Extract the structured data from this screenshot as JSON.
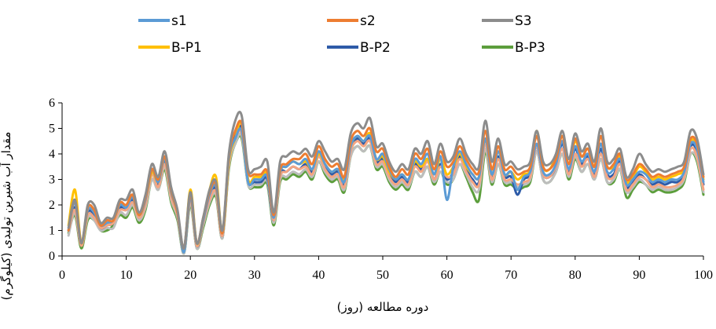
{
  "chart_data": {
    "type": "line",
    "xlabel": "دوره مطالعه (روز)",
    "ylabel": "مقدار آب شیرین تولیدی (کیلوگرم)",
    "xlim": [
      0,
      100
    ],
    "ylim": [
      0,
      6
    ],
    "xticks": [
      0,
      10,
      20,
      30,
      40,
      50,
      60,
      70,
      80,
      90,
      100
    ],
    "yticks": [
      0,
      1,
      2,
      3,
      4,
      5,
      6
    ],
    "grid": false,
    "legend_position": "top",
    "x": [
      1,
      2,
      3,
      4,
      5,
      6,
      7,
      8,
      9,
      10,
      11,
      12,
      13,
      14,
      15,
      16,
      17,
      18,
      19,
      20,
      21,
      22,
      23,
      24,
      25,
      26,
      27,
      28,
      29,
      30,
      31,
      32,
      33,
      34,
      35,
      36,
      37,
      38,
      39,
      40,
      41,
      42,
      43,
      44,
      45,
      46,
      47,
      48,
      49,
      50,
      51,
      52,
      53,
      54,
      55,
      56,
      57,
      58,
      59,
      60,
      61,
      62,
      63,
      64,
      65,
      66,
      67,
      68,
      69,
      70,
      71,
      72,
      73,
      74,
      75,
      76,
      77,
      78,
      79,
      80,
      81,
      82,
      83,
      84,
      85,
      86,
      87,
      88,
      89,
      90,
      91,
      92,
      93,
      94,
      95,
      96,
      97,
      98,
      99,
      100
    ],
    "series": [
      {
        "name": "s1",
        "color": "#5b9bd5",
        "values": [
          1.0,
          2.1,
          0.5,
          1.8,
          1.7,
          1.2,
          1.3,
          1.4,
          2.0,
          1.9,
          2.3,
          1.6,
          2.2,
          3.4,
          2.9,
          3.8,
          2.5,
          1.7,
          0.15,
          2.3,
          0.5,
          1.4,
          2.4,
          2.7,
          0.9,
          3.8,
          4.6,
          4.9,
          2.9,
          3.0,
          3.0,
          3.1,
          1.5,
          3.3,
          3.5,
          3.7,
          3.6,
          3.8,
          3.4,
          4.1,
          3.6,
          3.3,
          3.4,
          2.9,
          4.3,
          4.7,
          4.5,
          4.7,
          3.8,
          4.0,
          3.4,
          3.0,
          3.2,
          3.0,
          3.8,
          3.6,
          4.0,
          3.2,
          3.9,
          2.2,
          3.5,
          4.1,
          3.6,
          3.2,
          3.1,
          4.6,
          3.2,
          4.1,
          3.2,
          3.3,
          2.6,
          3.1,
          3.3,
          4.4,
          3.3,
          3.2,
          3.6,
          4.5,
          3.4,
          4.3,
          3.7,
          4.0,
          3.3,
          4.4,
          3.3,
          3.4,
          3.8,
          2.8,
          3.0,
          3.3,
          3.2,
          2.9,
          3.0,
          2.9,
          3.0,
          3.0,
          3.3,
          4.4,
          4.2,
          2.9
        ]
      },
      {
        "name": "s2",
        "color": "#ed7d31",
        "values": [
          1.0,
          2.2,
          0.5,
          1.9,
          1.8,
          1.2,
          1.4,
          1.4,
          2.1,
          2.0,
          2.4,
          1.6,
          2.3,
          3.4,
          3.0,
          3.9,
          2.6,
          1.7,
          0.3,
          2.4,
          0.5,
          1.5,
          2.5,
          2.8,
          0.9,
          3.9,
          4.9,
          5.2,
          3.3,
          3.2,
          3.2,
          3.3,
          1.6,
          3.4,
          3.6,
          3.8,
          3.8,
          4.0,
          3.6,
          4.3,
          3.8,
          3.5,
          3.6,
          3.1,
          4.5,
          4.9,
          4.7,
          5.0,
          4.1,
          4.2,
          3.5,
          3.1,
          3.4,
          3.2,
          4.0,
          3.8,
          4.2,
          3.4,
          4.1,
          3.5,
          3.7,
          4.3,
          3.8,
          3.4,
          3.3,
          4.9,
          3.4,
          4.3,
          3.4,
          3.5,
          3.2,
          3.3,
          3.5,
          4.7,
          3.5,
          3.4,
          3.8,
          4.7,
          3.6,
          4.6,
          3.9,
          4.2,
          3.5,
          4.7,
          3.5,
          3.6,
          4.0,
          3.0,
          3.2,
          3.6,
          3.4,
          3.1,
          3.2,
          3.1,
          3.2,
          3.3,
          3.5,
          4.6,
          4.4,
          3.1
        ]
      },
      {
        "name": "S3",
        "color": "#8c8c8c",
        "values": [
          1.1,
          2.2,
          0.5,
          2.0,
          2.0,
          1.3,
          1.5,
          1.5,
          2.2,
          2.2,
          2.6,
          1.7,
          2.4,
          3.6,
          3.1,
          4.1,
          2.7,
          1.8,
          0.3,
          2.5,
          0.5,
          1.5,
          2.6,
          2.9,
          1.0,
          4.0,
          5.3,
          5.5,
          3.4,
          3.4,
          3.5,
          3.7,
          1.7,
          3.7,
          3.9,
          4.1,
          4.0,
          4.2,
          3.9,
          4.5,
          4.1,
          3.7,
          3.8,
          3.4,
          4.8,
          5.2,
          5.0,
          5.4,
          4.3,
          4.4,
          3.7,
          3.3,
          3.6,
          3.4,
          4.2,
          4.0,
          4.5,
          3.6,
          4.4,
          3.7,
          3.9,
          4.6,
          4.0,
          3.6,
          3.5,
          5.3,
          3.7,
          4.6,
          3.6,
          3.7,
          3.4,
          3.5,
          3.7,
          4.9,
          3.7,
          3.6,
          4.0,
          4.9,
          3.8,
          4.8,
          4.1,
          4.4,
          3.7,
          5.0,
          3.7,
          3.8,
          4.2,
          3.1,
          3.4,
          4.0,
          3.6,
          3.3,
          3.4,
          3.3,
          3.4,
          3.5,
          3.7,
          4.9,
          4.6,
          3.2
        ]
      },
      {
        "name": "B-P1",
        "color": "#ffc000",
        "values": [
          1.2,
          2.6,
          0.5,
          1.8,
          1.7,
          1.2,
          1.3,
          1.4,
          2.0,
          2.0,
          2.3,
          1.6,
          2.2,
          3.3,
          2.9,
          3.8,
          2.5,
          1.7,
          0.2,
          2.6,
          0.5,
          1.4,
          2.6,
          3.1,
          0.9,
          3.7,
          4.6,
          5.2,
          3.0,
          3.1,
          3.1,
          3.2,
          1.6,
          3.3,
          3.5,
          3.7,
          3.6,
          3.7,
          3.4,
          4.0,
          3.6,
          3.3,
          3.4,
          3.0,
          4.3,
          4.7,
          4.5,
          4.8,
          3.8,
          3.9,
          3.3,
          3.0,
          3.2,
          3.0,
          3.7,
          3.5,
          3.8,
          3.2,
          3.8,
          3.2,
          3.5,
          4.0,
          3.5,
          3.2,
          3.1,
          4.6,
          3.2,
          4.1,
          3.2,
          3.3,
          3.0,
          3.2,
          3.4,
          4.9,
          3.5,
          3.4,
          3.9,
          4.7,
          3.6,
          4.5,
          3.9,
          4.2,
          3.5,
          4.4,
          3.5,
          3.5,
          3.9,
          2.9,
          3.1,
          3.5,
          3.3,
          3.0,
          3.1,
          3.0,
          3.1,
          3.2,
          3.4,
          4.5,
          4.3,
          3.0
        ]
      },
      {
        "name": "B-P2",
        "color": "#2e5ba8",
        "values": [
          1.0,
          1.9,
          0.4,
          1.7,
          1.6,
          1.1,
          1.2,
          1.3,
          1.9,
          1.8,
          2.2,
          1.5,
          2.1,
          3.2,
          2.8,
          3.7,
          2.4,
          1.6,
          0.2,
          2.3,
          0.4,
          1.3,
          2.3,
          2.6,
          0.8,
          3.7,
          4.7,
          5.0,
          3.0,
          2.9,
          2.9,
          3.0,
          1.4,
          3.2,
          3.3,
          3.5,
          3.4,
          3.6,
          3.3,
          3.9,
          3.5,
          3.2,
          3.3,
          2.8,
          4.2,
          4.6,
          4.4,
          4.6,
          3.7,
          3.8,
          3.2,
          2.9,
          3.1,
          2.9,
          3.6,
          3.4,
          3.8,
          3.0,
          3.6,
          3.0,
          3.3,
          3.9,
          3.4,
          3.0,
          2.9,
          4.5,
          3.1,
          3.9,
          3.1,
          3.1,
          2.4,
          3.0,
          3.2,
          4.3,
          3.2,
          3.1,
          3.5,
          4.4,
          3.3,
          4.2,
          3.6,
          3.9,
          3.2,
          4.2,
          3.2,
          3.2,
          3.7,
          2.7,
          2.9,
          3.2,
          3.0,
          2.8,
          2.9,
          2.8,
          2.9,
          2.9,
          3.2,
          4.3,
          4.1,
          2.8
        ]
      },
      {
        "name": "B-P3",
        "color": "#5c9e3c",
        "values": [
          0.9,
          1.6,
          0.3,
          1.4,
          1.4,
          1.0,
          1.0,
          1.2,
          1.6,
          1.5,
          1.9,
          1.3,
          1.8,
          3.0,
          2.6,
          3.4,
          2.1,
          1.4,
          0.1,
          2.0,
          0.3,
          1.1,
          2.0,
          2.3,
          0.7,
          3.4,
          4.4,
          4.6,
          2.8,
          2.7,
          2.7,
          2.8,
          1.2,
          2.9,
          3.0,
          3.2,
          3.1,
          3.3,
          3.0,
          3.7,
          3.2,
          2.9,
          3.0,
          2.5,
          3.9,
          4.3,
          4.1,
          4.3,
          3.4,
          3.5,
          2.9,
          2.6,
          2.8,
          2.6,
          3.3,
          3.1,
          3.5,
          2.8,
          3.3,
          2.8,
          3.0,
          3.6,
          3.1,
          2.5,
          2.2,
          4.1,
          2.8,
          3.6,
          2.8,
          2.8,
          2.6,
          2.7,
          2.9,
          4.1,
          3.0,
          2.9,
          3.3,
          4.0,
          3.0,
          3.8,
          3.3,
          3.6,
          3.0,
          3.8,
          2.9,
          2.9,
          3.4,
          2.3,
          2.6,
          2.9,
          2.8,
          2.5,
          2.6,
          2.5,
          2.5,
          2.6,
          2.9,
          4.0,
          3.7,
          2.4
        ]
      },
      {
        "color": "#f4a582",
        "values": [
          1.0,
          1.8,
          0.4,
          1.6,
          1.5,
          1.1,
          1.2,
          1.3,
          1.8,
          1.8,
          2.1,
          1.5,
          2.0,
          3.2,
          2.7,
          3.6,
          2.3,
          1.6,
          0.2,
          2.2,
          0.4,
          1.3,
          2.2,
          2.5,
          0.8,
          3.6,
          4.6,
          4.8,
          3.0,
          3.0,
          3.0,
          3.1,
          1.4,
          3.1,
          3.3,
          3.5,
          3.4,
          3.5,
          3.2,
          3.9,
          3.4,
          3.1,
          3.2,
          2.7,
          4.1,
          4.5,
          4.3,
          4.5,
          3.6,
          3.7,
          3.1,
          2.8,
          3.0,
          2.8,
          3.5,
          3.3,
          3.7,
          3.0,
          3.5,
          3.1,
          3.2,
          3.8,
          3.3,
          2.9,
          2.8,
          4.4,
          3.0,
          3.8,
          3.0,
          3.0,
          2.8,
          2.9,
          3.1,
          4.3,
          3.2,
          3.1,
          3.5,
          4.2,
          3.2,
          4.0,
          3.5,
          3.8,
          3.1,
          4.0,
          3.1,
          3.1,
          3.6,
          2.6,
          2.8,
          3.1,
          3.0,
          2.7,
          2.8,
          2.7,
          2.7,
          2.8,
          3.1,
          4.2,
          3.9,
          2.6
        ]
      },
      {
        "color": "#bdbdbd",
        "values": [
          0.8,
          1.7,
          0.4,
          1.5,
          1.4,
          1.0,
          1.1,
          1.1,
          1.7,
          1.6,
          2.0,
          1.4,
          1.9,
          3.0,
          2.6,
          3.5,
          2.2,
          1.5,
          0.1,
          2.1,
          0.3,
          1.2,
          2.1,
          2.4,
          0.7,
          3.5,
          4.4,
          4.7,
          2.8,
          2.8,
          2.8,
          2.9,
          1.3,
          3.0,
          3.1,
          3.3,
          3.2,
          3.4,
          3.1,
          3.7,
          3.3,
          3.0,
          3.1,
          2.6,
          3.9,
          4.3,
          4.1,
          4.3,
          3.5,
          3.6,
          3.0,
          2.7,
          2.9,
          2.7,
          3.3,
          3.1,
          3.5,
          2.9,
          3.3,
          2.9,
          3.0,
          3.6,
          3.2,
          2.7,
          2.6,
          4.2,
          2.9,
          3.6,
          2.9,
          2.9,
          2.7,
          2.8,
          3.0,
          4.1,
          3.0,
          2.9,
          3.3,
          4.0,
          3.1,
          3.9,
          3.3,
          3.6,
          3.0,
          3.8,
          2.9,
          3.0,
          3.4,
          2.5,
          2.7,
          3.0,
          2.8,
          2.6,
          2.7,
          2.6,
          2.6,
          2.7,
          3.0,
          4.0,
          3.8,
          2.5
        ]
      }
    ]
  }
}
